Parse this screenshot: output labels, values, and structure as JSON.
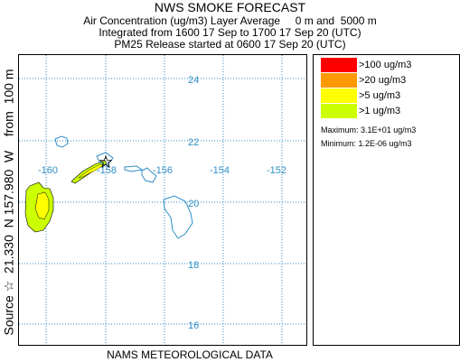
{
  "header": {
    "title": "NWS SMOKE FORECAST",
    "line1": "Air Concentration (ug/m3) Layer Average     0 m and  5000 m",
    "line2": "Integrated from 1600 17 Sep to 1700 17 Sep 20 (UTC)",
    "line3": "PM25 Release started at 0600 17 Sep 20 (UTC)"
  },
  "side_label": "Source ☆  21.330  N 157.980  W    from  100 m",
  "footer": "NAMS METEOROLOGICAL DATA",
  "map": {
    "latitude_labels": [
      "24",
      "22",
      "20",
      "18",
      "16"
    ],
    "longitude_labels": [
      "-160",
      "-158",
      "-156",
      "-154",
      "-152"
    ],
    "grid_color": "#2f8fc6",
    "coastline_color": "#2f8fc6",
    "source_marker": "star-icon"
  },
  "legend": {
    "items": [
      {
        "label": ">100 ug/m3",
        "color": "#ff0000"
      },
      {
        "label": ">20 ug/m3",
        "color": "#ff9900"
      },
      {
        "label": ">5 ug/m3",
        "color": "#ffff00"
      },
      {
        "label": ">1 ug/m3",
        "color": "#ccff00"
      }
    ],
    "maximum": "Maximum: 3.1E+01 ug/m3",
    "minimum": "Minimum: 1.2E-06 ug/m3"
  }
}
